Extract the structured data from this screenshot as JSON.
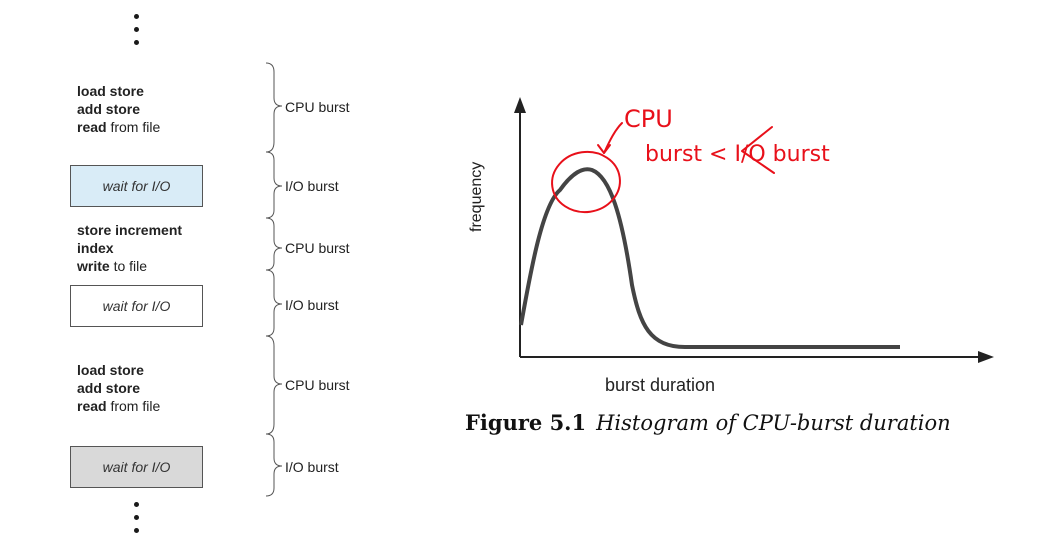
{
  "diagram": {
    "ellipsis": "⋮",
    "blocks": [
      {
        "kind": "cpu",
        "lines": [
          {
            "bold": "load store",
            "rest": ""
          },
          {
            "bold": "add store",
            "rest": ""
          },
          {
            "bold": "read",
            "rest": " from file"
          }
        ],
        "label": "CPU burst"
      },
      {
        "kind": "io",
        "text": "wait for I/O",
        "fill": "#d9ecf7",
        "label": "I/O burst"
      },
      {
        "kind": "cpu",
        "lines": [
          {
            "bold": "store increment",
            "rest": ""
          },
          {
            "bold": "index",
            "rest": ""
          },
          {
            "bold": "write",
            "rest": " to file"
          }
        ],
        "label": "CPU burst"
      },
      {
        "kind": "io",
        "text": "wait for I/O",
        "fill": "#ffffff",
        "label": "I/O burst"
      },
      {
        "kind": "cpu",
        "lines": [
          {
            "bold": "load store",
            "rest": ""
          },
          {
            "bold": "add store",
            "rest": ""
          },
          {
            "bold": "read",
            "rest": " from file"
          }
        ],
        "label": "CPU burst"
      },
      {
        "kind": "io",
        "text": "wait for I/O",
        "fill": "#d9d9d9",
        "label": "I/O burst"
      }
    ]
  },
  "figure": {
    "ylabel": "frequency",
    "xlabel": "burst duration",
    "caption_number": "Figure 5.1",
    "caption_text": "Histogram of CPU-burst duration",
    "annotation_color": "#e8101a",
    "annotation_line1": "CPU",
    "annotation_line2": "burst < I/O burst"
  }
}
